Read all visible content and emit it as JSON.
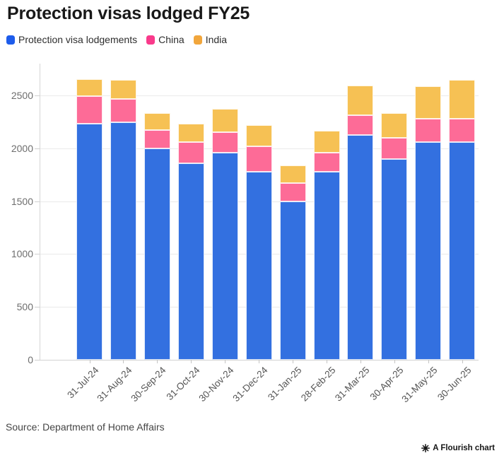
{
  "title": "Protection visas lodged FY25",
  "source": {
    "text": "Source: Department of Home Affairs"
  },
  "credit": {
    "text": "A Flourish chart"
  },
  "chart_data": {
    "type": "bar",
    "stacked": true,
    "title": "Protection visas lodged FY25",
    "xlabel": "",
    "ylabel": "",
    "grid": true,
    "legend_position": "top",
    "ylim": [
      0,
      2800
    ],
    "yticks": [
      0,
      500,
      1000,
      1500,
      2000,
      2500
    ],
    "ytick_labels": [
      "0",
      "500",
      "1000",
      "1500",
      "2000",
      "2500"
    ],
    "categories": [
      "31-Jul-24",
      "31-Aug-24",
      "30-Sep-24",
      "31-Oct-24",
      "30-Nov-24",
      "31-Dec-24",
      "31-Jan-25",
      "28-Feb-25",
      "31-Mar-25",
      "30-Apr-25",
      "31-May-25",
      "30-Jun-25"
    ],
    "series": [
      {
        "name": "Protection visa lodgements",
        "color": "#1d5ceb",
        "bar_color": "#3370e0",
        "values": [
          2230,
          2245,
          2000,
          1860,
          1960,
          1775,
          1500,
          1780,
          2125,
          1895,
          2060,
          2055
        ]
      },
      {
        "name": "China",
        "color": "#f93a8b",
        "bar_color": "#fd6b97",
        "values": [
          260,
          220,
          170,
          200,
          195,
          245,
          170,
          180,
          190,
          200,
          220,
          225
        ]
      },
      {
        "name": "India",
        "color": "#f1a63c",
        "bar_color": "#f6c154",
        "values": [
          165,
          180,
          160,
          175,
          220,
          200,
          170,
          205,
          280,
          240,
          305,
          365
        ]
      }
    ],
    "totals": [
      2655,
      2645,
      2330,
      2235,
      2375,
      2220,
      1840,
      2165,
      2595,
      2335,
      2585,
      2645
    ]
  }
}
